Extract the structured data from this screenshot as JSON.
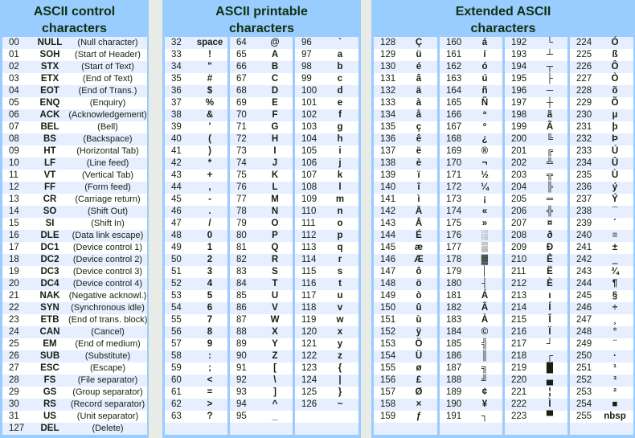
{
  "panels": {
    "control": {
      "title_line1": "ASCII control",
      "title_line2": "characters"
    },
    "printable": {
      "title_line1": "ASCII printable",
      "title_line2": "characters"
    },
    "extended": {
      "title_line1": "Extended ASCII",
      "title_line2": "characters"
    }
  },
  "colors": {
    "header_bg": "#99ccff",
    "row_alt": "#e6eeff",
    "row": "#ffffff",
    "text": "#14210f"
  },
  "control": [
    [
      "00",
      "NULL",
      "(Null character)"
    ],
    [
      "01",
      "SOH",
      "(Start of Header)"
    ],
    [
      "02",
      "STX",
      "(Start of Text)"
    ],
    [
      "03",
      "ETX",
      "(End of Text)"
    ],
    [
      "04",
      "EOT",
      "(End of Trans.)"
    ],
    [
      "05",
      "ENQ",
      "(Enquiry)"
    ],
    [
      "06",
      "ACK",
      "(Acknowledgement)"
    ],
    [
      "07",
      "BEL",
      "(Bell)"
    ],
    [
      "08",
      "BS",
      "(Backspace)"
    ],
    [
      "09",
      "HT",
      "(Horizontal Tab)"
    ],
    [
      "10",
      "LF",
      "(Line feed)"
    ],
    [
      "11",
      "VT",
      "(Vertical Tab)"
    ],
    [
      "12",
      "FF",
      "(Form feed)"
    ],
    [
      "13",
      "CR",
      "(Carriage return)"
    ],
    [
      "14",
      "SO",
      "(Shift Out)"
    ],
    [
      "15",
      "SI",
      "(Shift In)"
    ],
    [
      "16",
      "DLE",
      "(Data link escape)"
    ],
    [
      "17",
      "DC1",
      "(Device control 1)"
    ],
    [
      "18",
      "DC2",
      "(Device control 2)"
    ],
    [
      "19",
      "DC3",
      "(Device control 3)"
    ],
    [
      "20",
      "DC4",
      "(Device control 4)"
    ],
    [
      "21",
      "NAK",
      "(Negative acknowl.)"
    ],
    [
      "22",
      "SYN",
      "(Synchronous idle)"
    ],
    [
      "23",
      "ETB",
      "(End of trans. block)"
    ],
    [
      "24",
      "CAN",
      "(Cancel)"
    ],
    [
      "25",
      "EM",
      "(End of medium)"
    ],
    [
      "26",
      "SUB",
      "(Substitute)"
    ],
    [
      "27",
      "ESC",
      "(Escape)"
    ],
    [
      "28",
      "FS",
      "(File separator)"
    ],
    [
      "29",
      "GS",
      "(Group separator)"
    ],
    [
      "30",
      "RS",
      "(Record separator)"
    ],
    [
      "31",
      "US",
      "(Unit separator)"
    ],
    [
      "127",
      "DEL",
      "(Delete)"
    ]
  ],
  "printable": [
    [
      [
        "32",
        "space"
      ],
      [
        "33",
        "!"
      ],
      [
        "34",
        "\""
      ],
      [
        "35",
        "#"
      ],
      [
        "36",
        "$"
      ],
      [
        "37",
        "%"
      ],
      [
        "38",
        "&"
      ],
      [
        "39",
        "'"
      ],
      [
        "40",
        "("
      ],
      [
        "41",
        ")"
      ],
      [
        "42",
        "*"
      ],
      [
        "43",
        "+"
      ],
      [
        "44",
        ","
      ],
      [
        "45",
        "-"
      ],
      [
        "46",
        "."
      ],
      [
        "47",
        "/"
      ],
      [
        "48",
        "0"
      ],
      [
        "49",
        "1"
      ],
      [
        "50",
        "2"
      ],
      [
        "51",
        "3"
      ],
      [
        "52",
        "4"
      ],
      [
        "53",
        "5"
      ],
      [
        "54",
        "6"
      ],
      [
        "55",
        "7"
      ],
      [
        "56",
        "8"
      ],
      [
        "57",
        "9"
      ],
      [
        "58",
        ":"
      ],
      [
        "59",
        ";"
      ],
      [
        "60",
        "<"
      ],
      [
        "61",
        "="
      ],
      [
        "62",
        ">"
      ],
      [
        "63",
        "?"
      ]
    ],
    [
      [
        "64",
        "@"
      ],
      [
        "65",
        "A"
      ],
      [
        "66",
        "B"
      ],
      [
        "67",
        "C"
      ],
      [
        "68",
        "D"
      ],
      [
        "69",
        "E"
      ],
      [
        "70",
        "F"
      ],
      [
        "71",
        "G"
      ],
      [
        "72",
        "H"
      ],
      [
        "73",
        "I"
      ],
      [
        "74",
        "J"
      ],
      [
        "75",
        "K"
      ],
      [
        "76",
        "L"
      ],
      [
        "77",
        "M"
      ],
      [
        "78",
        "N"
      ],
      [
        "79",
        "O"
      ],
      [
        "80",
        "P"
      ],
      [
        "81",
        "Q"
      ],
      [
        "82",
        "R"
      ],
      [
        "83",
        "S"
      ],
      [
        "84",
        "T"
      ],
      [
        "85",
        "U"
      ],
      [
        "86",
        "V"
      ],
      [
        "87",
        "W"
      ],
      [
        "88",
        "X"
      ],
      [
        "89",
        "Y"
      ],
      [
        "90",
        "Z"
      ],
      [
        "91",
        "["
      ],
      [
        "92",
        "\\"
      ],
      [
        "93",
        "]"
      ],
      [
        "94",
        "^"
      ],
      [
        "95",
        "_"
      ]
    ],
    [
      [
        "96",
        "`"
      ],
      [
        "97",
        "a"
      ],
      [
        "98",
        "b"
      ],
      [
        "99",
        "c"
      ],
      [
        "100",
        "d"
      ],
      [
        "101",
        "e"
      ],
      [
        "102",
        "f"
      ],
      [
        "103",
        "g"
      ],
      [
        "104",
        "h"
      ],
      [
        "105",
        "i"
      ],
      [
        "106",
        "j"
      ],
      [
        "107",
        "k"
      ],
      [
        "108",
        "l"
      ],
      [
        "109",
        "m"
      ],
      [
        "110",
        "n"
      ],
      [
        "111",
        "o"
      ],
      [
        "112",
        "p"
      ],
      [
        "113",
        "q"
      ],
      [
        "114",
        "r"
      ],
      [
        "115",
        "s"
      ],
      [
        "116",
        "t"
      ],
      [
        "117",
        "u"
      ],
      [
        "118",
        "v"
      ],
      [
        "119",
        "w"
      ],
      [
        "120",
        "x"
      ],
      [
        "121",
        "y"
      ],
      [
        "122",
        "z"
      ],
      [
        "123",
        "{"
      ],
      [
        "124",
        "|"
      ],
      [
        "125",
        "}"
      ],
      [
        "126",
        "~"
      ]
    ]
  ],
  "extended": [
    [
      [
        "128",
        "Ç"
      ],
      [
        "129",
        "ü"
      ],
      [
        "130",
        "é"
      ],
      [
        "131",
        "â"
      ],
      [
        "132",
        "ä"
      ],
      [
        "133",
        "à"
      ],
      [
        "134",
        "å"
      ],
      [
        "135",
        "ç"
      ],
      [
        "136",
        "ê"
      ],
      [
        "137",
        "ë"
      ],
      [
        "138",
        "è"
      ],
      [
        "139",
        "ï"
      ],
      [
        "140",
        "î"
      ],
      [
        "141",
        "ì"
      ],
      [
        "142",
        "Ä"
      ],
      [
        "143",
        "Å"
      ],
      [
        "144",
        "É"
      ],
      [
        "145",
        "æ"
      ],
      [
        "146",
        "Æ"
      ],
      [
        "147",
        "ô"
      ],
      [
        "148",
        "ö"
      ],
      [
        "149",
        "ò"
      ],
      [
        "150",
        "û"
      ],
      [
        "151",
        "ù"
      ],
      [
        "152",
        "ÿ"
      ],
      [
        "153",
        "Ö"
      ],
      [
        "154",
        "Ü"
      ],
      [
        "155",
        "ø"
      ],
      [
        "156",
        "£"
      ],
      [
        "157",
        "Ø"
      ],
      [
        "158",
        "×"
      ],
      [
        "159",
        "ƒ"
      ]
    ],
    [
      [
        "160",
        "á"
      ],
      [
        "161",
        "í"
      ],
      [
        "162",
        "ó"
      ],
      [
        "163",
        "ú"
      ],
      [
        "164",
        "ñ"
      ],
      [
        "165",
        "Ñ"
      ],
      [
        "166",
        "ª"
      ],
      [
        "167",
        "º"
      ],
      [
        "168",
        "¿"
      ],
      [
        "169",
        "®"
      ],
      [
        "170",
        "¬"
      ],
      [
        "171",
        "½"
      ],
      [
        "172",
        "¼"
      ],
      [
        "173",
        "¡"
      ],
      [
        "174",
        "«"
      ],
      [
        "175",
        "»"
      ],
      [
        "176",
        "░"
      ],
      [
        "177",
        "▒"
      ],
      [
        "178",
        "▓"
      ],
      [
        "179",
        "│"
      ],
      [
        "180",
        "┤"
      ],
      [
        "181",
        "Á"
      ],
      [
        "182",
        "Â"
      ],
      [
        "183",
        "À"
      ],
      [
        "184",
        "©"
      ],
      [
        "185",
        "╣"
      ],
      [
        "186",
        "║"
      ],
      [
        "187",
        "╗"
      ],
      [
        "188",
        "╝"
      ],
      [
        "189",
        "¢"
      ],
      [
        "190",
        "¥"
      ],
      [
        "191",
        "┐"
      ]
    ],
    [
      [
        "192",
        "└"
      ],
      [
        "193",
        "┴"
      ],
      [
        "194",
        "┬"
      ],
      [
        "195",
        "├"
      ],
      [
        "196",
        "─"
      ],
      [
        "197",
        "┼"
      ],
      [
        "198",
        "ã"
      ],
      [
        "199",
        "Ã"
      ],
      [
        "200",
        "╚"
      ],
      [
        "201",
        "╔"
      ],
      [
        "202",
        "╩"
      ],
      [
        "203",
        "╦"
      ],
      [
        "204",
        "╠"
      ],
      [
        "205",
        "═"
      ],
      [
        "206",
        "╬"
      ],
      [
        "207",
        "¤"
      ],
      [
        "208",
        "ð"
      ],
      [
        "209",
        "Ð"
      ],
      [
        "210",
        "Ê"
      ],
      [
        "211",
        "Ë"
      ],
      [
        "212",
        "È"
      ],
      [
        "213",
        "ı"
      ],
      [
        "214",
        "Í"
      ],
      [
        "215",
        "Î"
      ],
      [
        "216",
        "Ï"
      ],
      [
        "217",
        "┘"
      ],
      [
        "218",
        "┌"
      ],
      [
        "219",
        "█"
      ],
      [
        "220",
        "▄"
      ],
      [
        "221",
        "¦"
      ],
      [
        "222",
        "Ì"
      ],
      [
        "223",
        "▀"
      ]
    ],
    [
      [
        "224",
        "Ó"
      ],
      [
        "225",
        "ß"
      ],
      [
        "226",
        "Ô"
      ],
      [
        "227",
        "Ò"
      ],
      [
        "228",
        "õ"
      ],
      [
        "229",
        "Õ"
      ],
      [
        "230",
        "µ"
      ],
      [
        "231",
        "þ"
      ],
      [
        "232",
        "Þ"
      ],
      [
        "233",
        "Ú"
      ],
      [
        "234",
        "Û"
      ],
      [
        "235",
        "Ù"
      ],
      [
        "236",
        "ý"
      ],
      [
        "237",
        "Ý"
      ],
      [
        "238",
        "¯"
      ],
      [
        "239",
        "´"
      ],
      [
        "240",
        "≡"
      ],
      [
        "241",
        "±"
      ],
      [
        "242",
        "‗"
      ],
      [
        "243",
        "¾"
      ],
      [
        "244",
        "¶"
      ],
      [
        "245",
        "§"
      ],
      [
        "246",
        "÷"
      ],
      [
        "247",
        "¸"
      ],
      [
        "248",
        "°"
      ],
      [
        "249",
        "¨"
      ],
      [
        "250",
        "·"
      ],
      [
        "251",
        "¹"
      ],
      [
        "252",
        "³"
      ],
      [
        "253",
        "²"
      ],
      [
        "254",
        "■"
      ],
      [
        "255",
        "nbsp"
      ]
    ]
  ]
}
